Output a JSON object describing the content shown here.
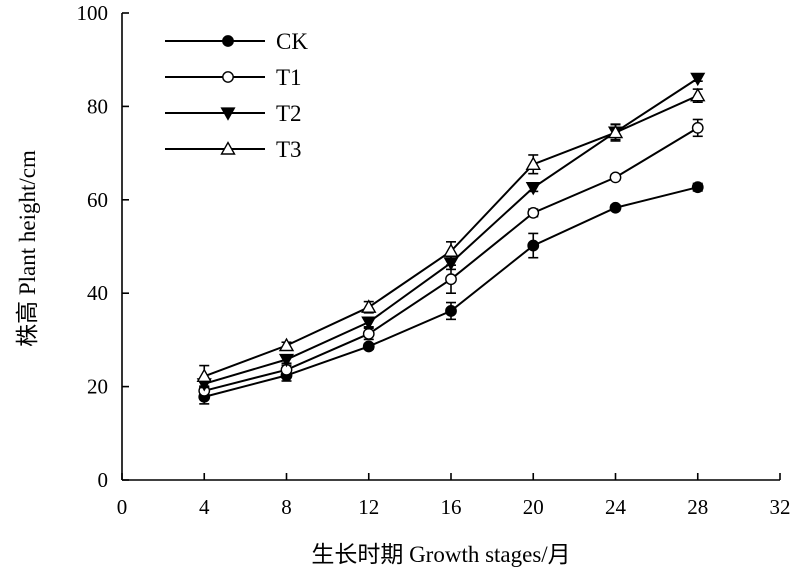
{
  "chart_data": {
    "type": "line",
    "xlabel": "生长时期 Growth stages/月",
    "ylabel": "株高 Plant height/cm",
    "xlim": [
      0,
      32
    ],
    "ylim": [
      0,
      100
    ],
    "x_ticks": [
      "0",
      "4",
      "8",
      "12",
      "16",
      "20",
      "24",
      "28",
      "32"
    ],
    "y_ticks": [
      "0",
      "20",
      "40",
      "60",
      "80",
      "100"
    ],
    "grid": false,
    "legend_position": "top-left",
    "x": [
      4,
      8,
      12,
      16,
      20,
      24,
      28
    ],
    "series": [
      {
        "name": "CK",
        "marker": "filled-circle",
        "values": [
          17.8,
          22.4,
          28.6,
          36.2,
          50.2,
          58.3,
          62.7
        ],
        "errors": [
          1.5,
          1.2,
          0.6,
          1.8,
          2.6,
          0.6,
          0.8
        ]
      },
      {
        "name": "T1",
        "marker": "open-circle",
        "values": [
          19.1,
          23.6,
          31.3,
          43.0,
          57.2,
          64.8,
          75.4
        ],
        "errors": [
          1.0,
          1.0,
          1.2,
          3.0,
          0.8,
          0.6,
          1.8
        ]
      },
      {
        "name": "T2",
        "marker": "filled-triangle-down",
        "values": [
          20.6,
          25.8,
          33.8,
          46.5,
          62.6,
          74.5,
          86.0
        ],
        "errors": [
          0.8,
          0.8,
          1.0,
          1.4,
          0.8,
          1.6,
          0.6
        ]
      },
      {
        "name": "T3",
        "marker": "open-triangle-up",
        "values": [
          22.2,
          28.8,
          37.0,
          49.0,
          67.6,
          74.4,
          82.3
        ],
        "errors": [
          2.3,
          0.7,
          1.2,
          2.0,
          2.0,
          1.8,
          1.4
        ]
      }
    ]
  }
}
